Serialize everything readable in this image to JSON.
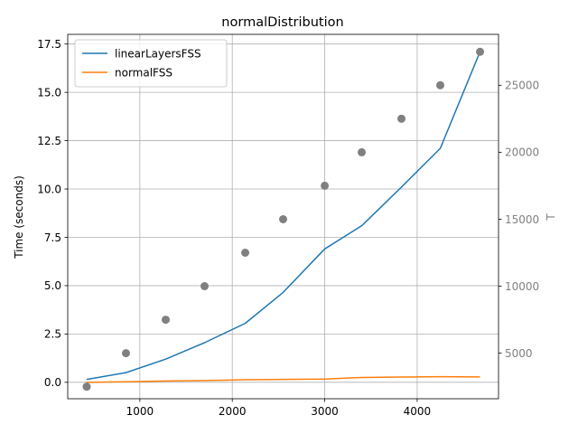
{
  "chart_data": {
    "type": "line",
    "title": "normalDistribution",
    "xlabel": "",
    "ylabel": "Time (seconds)",
    "y2label": "T",
    "xlim": [
      220,
      4880
    ],
    "ylim": [
      -0.85,
      18.0
    ],
    "y2lim": [
      1600,
      28800
    ],
    "xticks": [
      1000,
      2000,
      3000,
      4000
    ],
    "yticks": [
      0.0,
      2.5,
      5.0,
      7.5,
      10.0,
      12.5,
      15.0,
      17.5
    ],
    "ytick_labels": [
      "0.0",
      "2.5",
      "5.0",
      "7.5",
      "10.0",
      "12.5",
      "15.0",
      "17.5"
    ],
    "y2ticks": [
      5000,
      10000,
      15000,
      20000,
      25000
    ],
    "grid": true,
    "legend_position": "upper-left",
    "series": [
      {
        "name": "linearLayersFSS",
        "color": "#1f77b4",
        "axis": "left",
        "x": [
          425,
          850,
          1280,
          1700,
          2140,
          2550,
          3000,
          3400,
          3830,
          4250,
          4680
        ],
        "y": [
          0.15,
          0.5,
          1.2,
          2.05,
          3.05,
          4.65,
          6.9,
          8.1,
          10.1,
          12.1,
          17.1
        ]
      },
      {
        "name": "normalFSS",
        "color": "#ff7f0e",
        "axis": "left",
        "x": [
          425,
          850,
          1280,
          1700,
          2140,
          2550,
          3000,
          3400,
          3830,
          4250,
          4680
        ],
        "y": [
          0.0,
          0.03,
          0.07,
          0.09,
          0.13,
          0.15,
          0.17,
          0.25,
          0.27,
          0.29,
          0.28
        ]
      },
      {
        "color": "#808080",
        "axis": "right",
        "marker": "circle",
        "x": [
          425,
          850,
          1280,
          1700,
          2140,
          2550,
          3000,
          3400,
          3830,
          4250,
          4680
        ],
        "y": [
          2500,
          5000,
          7500,
          10000,
          12500,
          15000,
          17500,
          20000,
          22500,
          25000,
          27500
        ]
      }
    ]
  }
}
